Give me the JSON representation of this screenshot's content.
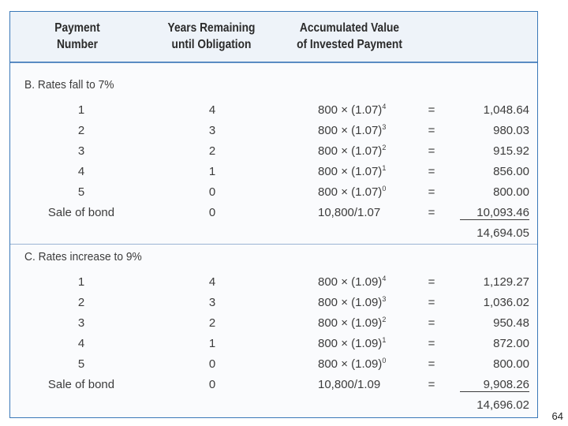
{
  "header": {
    "col1_line1": "Payment",
    "col1_line2": "Number",
    "col2_line1": "Years Remaining",
    "col2_line2": "until Obligation",
    "col3_line1": "Accumulated Value",
    "col3_line2": "of Invested Payment"
  },
  "section_b": {
    "label": "B. Rates fall to 7%",
    "rows": [
      {
        "payment": "1",
        "years": "4",
        "expr_base": "800 × (1.07)",
        "expr_exp": "4",
        "eq": "=",
        "value": "1,048.64"
      },
      {
        "payment": "2",
        "years": "3",
        "expr_base": "800 × (1.07)",
        "expr_exp": "3",
        "eq": "=",
        "value": "980.03"
      },
      {
        "payment": "3",
        "years": "2",
        "expr_base": "800 × (1.07)",
        "expr_exp": "2",
        "eq": "=",
        "value": "915.92"
      },
      {
        "payment": "4",
        "years": "1",
        "expr_base": "800 × (1.07)",
        "expr_exp": "1",
        "eq": "=",
        "value": "856.00"
      },
      {
        "payment": "5",
        "years": "0",
        "expr_base": "800 × (1.07)",
        "expr_exp": "0",
        "eq": "=",
        "value": "800.00"
      },
      {
        "payment": "Sale of bond",
        "years": "0",
        "expr_base": "10,800/1.07",
        "expr_exp": "",
        "eq": "=",
        "value": "10,093.46"
      }
    ],
    "total": "14,694.05"
  },
  "section_c": {
    "label": "C. Rates increase to 9%",
    "rows": [
      {
        "payment": "1",
        "years": "4",
        "expr_base": "800 × (1.09)",
        "expr_exp": "4",
        "eq": "=",
        "value": "1,129.27"
      },
      {
        "payment": "2",
        "years": "3",
        "expr_base": "800 × (1.09)",
        "expr_exp": "3",
        "eq": "=",
        "value": "1,036.02"
      },
      {
        "payment": "3",
        "years": "2",
        "expr_base": "800 × (1.09)",
        "expr_exp": "2",
        "eq": "=",
        "value": "950.48"
      },
      {
        "payment": "4",
        "years": "1",
        "expr_base": "800 × (1.09)",
        "expr_exp": "1",
        "eq": "=",
        "value": "872.00"
      },
      {
        "payment": "5",
        "years": "0",
        "expr_base": "800 × (1.09)",
        "expr_exp": "0",
        "eq": "=",
        "value": "800.00"
      },
      {
        "payment": "Sale of bond",
        "years": "0",
        "expr_base": "10,800/1.09",
        "expr_exp": "",
        "eq": "=",
        "value": "9,908.26"
      }
    ],
    "total": "14,696.02"
  },
  "page_number": "64"
}
